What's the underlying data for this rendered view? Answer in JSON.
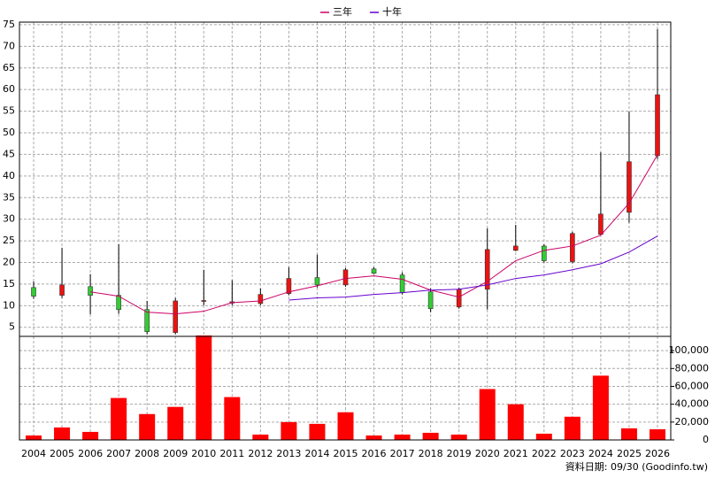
{
  "chart_data": {
    "type": "candlestick",
    "categories": [
      "2004",
      "2005",
      "2006",
      "2007",
      "2008",
      "2009",
      "2010",
      "2011",
      "2012",
      "2013",
      "2014",
      "2015",
      "2016",
      "2017",
      "2018",
      "2019",
      "2020",
      "2021",
      "2022",
      "2023",
      "2024",
      "2025",
      "2026"
    ],
    "open": [
      14.2,
      12.4,
      14.4,
      12.4,
      9.1,
      3.8,
      11.0,
      10.6,
      10.5,
      12.8,
      16.5,
      14.8,
      18.5,
      17.1,
      13.2,
      9.7,
      13.8,
      22.8,
      23.8,
      20.2,
      26.5,
      31.6,
      44.7
    ],
    "high": [
      15.6,
      23.4,
      17.3,
      24.2,
      11.1,
      11.8,
      18.3,
      15.9,
      14.0,
      18.9,
      21.8,
      18.7,
      18.9,
      17.7,
      14.0,
      14.2,
      27.9,
      28.7,
      24.2,
      27.1,
      45.5,
      54.9,
      74.0
    ],
    "low": [
      11.6,
      11.8,
      8.0,
      8.1,
      3.4,
      3.4,
      10.1,
      10.1,
      10.1,
      12.4,
      14.2,
      14.4,
      17.3,
      12.6,
      8.5,
      9.3,
      9.1,
      22.6,
      20.0,
      19.8,
      26.3,
      29.2,
      43.9
    ],
    "close": [
      12.2,
      14.8,
      12.4,
      9.1,
      4.0,
      11.1,
      11.2,
      10.9,
      12.6,
      16.3,
      14.8,
      18.3,
      17.5,
      13.0,
      9.3,
      13.8,
      23.0,
      23.8,
      20.4,
      26.7,
      31.2,
      43.3,
      58.8
    ],
    "up_color": "#ee1111",
    "down_color": "#33cc33",
    "series": [
      {
        "name": "三年",
        "color": "#cc0066",
        "values": [
          null,
          null,
          13.2,
          12.2,
          8.5,
          8.1,
          8.7,
          10.7,
          11.1,
          13.2,
          14.6,
          16.3,
          16.9,
          16.1,
          13.6,
          12.0,
          15.6,
          20.4,
          22.8,
          23.8,
          26.3,
          33.7,
          44.9
        ]
      },
      {
        "name": "十年",
        "color": "#6600cc",
        "values": [
          null,
          null,
          null,
          null,
          null,
          null,
          null,
          null,
          null,
          11.3,
          11.8,
          12.0,
          12.6,
          13.0,
          13.6,
          13.8,
          14.8,
          16.3,
          17.1,
          18.3,
          19.7,
          22.4,
          26.1
        ]
      }
    ],
    "ylim": [
      2.9,
      75.6
    ],
    "yticks": [
      5,
      10,
      15,
      20,
      25,
      30,
      35,
      40,
      45,
      50,
      55,
      60,
      65,
      70,
      75
    ],
    "grid": true,
    "volume": {
      "color": "#ff0000",
      "values": [
        5000,
        14000,
        9000,
        47000,
        29000,
        37000,
        117000,
        48000,
        6000,
        20000,
        18000,
        31000,
        5000,
        6000,
        8000,
        6000,
        57000,
        40000,
        7000,
        26000,
        72000,
        13000,
        12000
      ],
      "ylim": [
        0,
        116000
      ],
      "yticks": [
        0,
        {
          "value": 20000,
          "label": "20,000"
        },
        {
          "value": 40000,
          "label": "40,000"
        },
        {
          "value": 60000,
          "label": "60,000"
        },
        {
          "value": 80000,
          "label": "80,000"
        },
        {
          "value": 100000,
          "label": "100,000"
        }
      ]
    },
    "source": "資料日期: 09/30  (Goodinfo.tw)"
  }
}
